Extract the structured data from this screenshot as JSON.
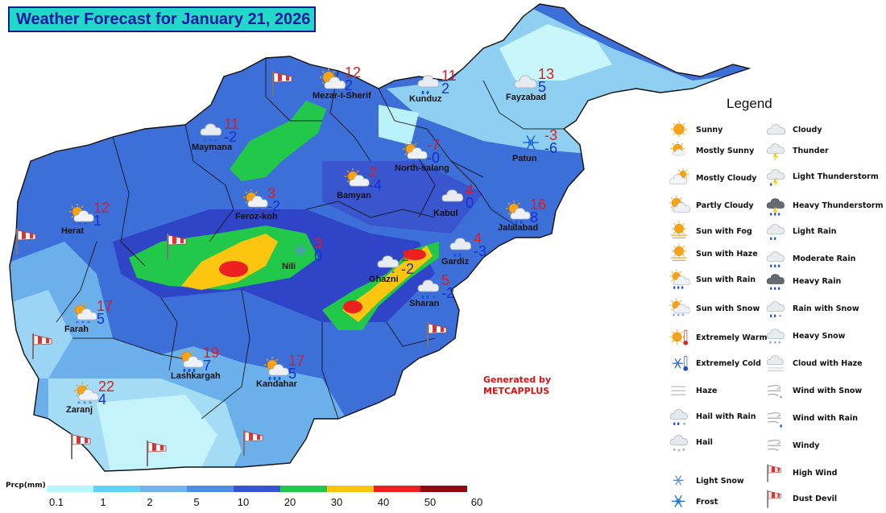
{
  "title": "Weather Forecast for January 21, 2026",
  "generated_by": [
    "Generated by",
    "METCAPPLUS"
  ],
  "cities": [
    {
      "name": "Mezar-I-Sherif",
      "icon": "partly-cloudy-icon",
      "max": "12",
      "min": "2"
    },
    {
      "name": "Kunduz",
      "icon": "light-rain-icon",
      "max": "11",
      "min": "2"
    },
    {
      "name": "Fayzabad",
      "icon": "cloudy-icon",
      "max": "13",
      "min": "5"
    },
    {
      "name": "Maymana",
      "icon": "heavy-snow-icon",
      "max": "11",
      "min": "-2"
    },
    {
      "name": "North-salang",
      "icon": "sun-with-snow-icon",
      "max": "-7",
      "min": "-0"
    },
    {
      "name": "Patun",
      "icon": "frost-icon",
      "max": "-3",
      "min": "-6"
    },
    {
      "name": "Bamyan",
      "icon": "sun-with-snow-icon",
      "max": "2",
      "min": "-4"
    },
    {
      "name": "Feroz-koh",
      "icon": "sun-with-snow-icon",
      "max": "3",
      "min": "-2"
    },
    {
      "name": "Herat",
      "icon": "sun-with-snow-icon",
      "max": "12",
      "min": "1"
    },
    {
      "name": "Kabul",
      "icon": "heavy-snow-icon",
      "max": "4",
      "min": "0"
    },
    {
      "name": "Jalalabad",
      "icon": "sun-with-rain-icon",
      "max": "16",
      "min": "8"
    },
    {
      "name": "Nili",
      "icon": "light-snow-icon",
      "max": "3",
      "min": "0"
    },
    {
      "name": "Gardiz",
      "icon": "light-rain-icon",
      "max": "4",
      "min": "-3"
    },
    {
      "name": "Ghazni",
      "icon": "heavy-snow-icon",
      "max": "2",
      "min": "-2"
    },
    {
      "name": "Sharan",
      "icon": "rain-with-snow-icon",
      "max": "5",
      "min": "-2"
    },
    {
      "name": "Farah",
      "icon": "sun-with-snow-icon",
      "max": "17",
      "min": "5"
    },
    {
      "name": "Lashkargah",
      "icon": "sun-with-rain-icon",
      "max": "19",
      "min": "7"
    },
    {
      "name": "Kandahar",
      "icon": "sun-with-rain-icon",
      "max": "17",
      "min": "5"
    },
    {
      "name": "Zaranj",
      "icon": "sun-with-snow-icon",
      "max": "22",
      "min": "4"
    }
  ],
  "legend": {
    "title": "Legend",
    "left_items": [
      {
        "label": "Sunny",
        "icon": "sunny-icon"
      },
      {
        "label": "Mostly Sunny",
        "icon": "mostly-sunny-icon"
      },
      {
        "label": "Mostly Cloudy",
        "icon": "mostly-cloudy-icon"
      },
      {
        "label": "Partly Cloudy",
        "icon": "partly-cloudy-icon"
      },
      {
        "label": "Sun with Fog",
        "icon": "sun-with-fog-icon"
      },
      {
        "label": "Sun with Haze",
        "icon": "sun-with-haze-icon"
      },
      {
        "label": "Sun with Rain",
        "icon": "sun-with-rain-icon"
      },
      {
        "label": "Sun with Snow",
        "icon": "sun-with-snow-icon"
      },
      {
        "label": "Extremely Warm",
        "icon": "extremely-warm-icon"
      },
      {
        "label": "Extremely Cold",
        "icon": "extremely-cold-icon"
      },
      {
        "label": "Haze",
        "icon": "haze-icon"
      },
      {
        "label": "Hail with Rain",
        "icon": "hail-with-rain-icon"
      },
      {
        "label": "Hail",
        "icon": "hail-icon"
      },
      {
        "label": "Light Snow",
        "icon": "light-snow-icon"
      },
      {
        "label": "Frost",
        "icon": "frost-icon"
      }
    ],
    "right_items": [
      {
        "label": "Cloudy",
        "icon": "cloudy-icon"
      },
      {
        "label": "Thunder",
        "icon": "thunder-icon"
      },
      {
        "label": "Light Thunderstorm",
        "icon": "light-thunderstorm-icon"
      },
      {
        "label": "Heavy Thunderstorm",
        "icon": "heavy-thunderstorm-icon"
      },
      {
        "label": "Light Rain",
        "icon": "light-rain-icon"
      },
      {
        "label": "Moderate Rain",
        "icon": "moderate-rain-icon"
      },
      {
        "label": "Heavy Rain",
        "icon": "heavy-rain-icon"
      },
      {
        "label": "Rain with Snow",
        "icon": "rain-with-snow-icon"
      },
      {
        "label": "Heavy Snow",
        "icon": "heavy-snow-icon"
      },
      {
        "label": "Cloud with Haze",
        "icon": "cloud-with-haze-icon"
      },
      {
        "label": "Wind with Snow",
        "icon": "wind-with-snow-icon"
      },
      {
        "label": "Wind with Rain",
        "icon": "wind-with-rain-icon"
      },
      {
        "label": "Windy",
        "icon": "windy-icon"
      },
      {
        "label": "High Wind",
        "icon": "high-wind-icon"
      },
      {
        "label": "Dust Devil",
        "icon": "dust-devil-icon"
      }
    ]
  },
  "scale": {
    "unit": "Prcp(mm)",
    "labels": [
      "0.1",
      "1",
      "2",
      "5",
      "10",
      "20",
      "30",
      "40",
      "50",
      "60"
    ],
    "colors": [
      "#b7f6fb",
      "#63d2f4",
      "#71b5ec",
      "#4d8fe0",
      "#3653d4",
      "#22c84a",
      "#fcc510",
      "#ed2020",
      "#8e0b10"
    ]
  },
  "colors": {
    "title_bg": "#22d8c8",
    "title_text": "#0f1a9e",
    "max_temp": "#e01b1b",
    "min_temp": "#1530d8",
    "generated_text": "#e01010"
  }
}
